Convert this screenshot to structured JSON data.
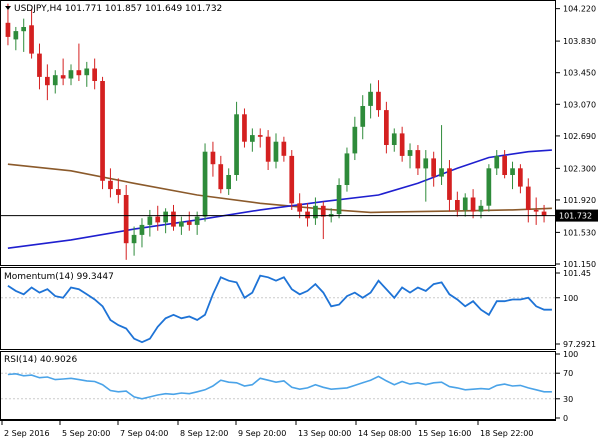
{
  "chart_data": {
    "type": "candlestick",
    "symbol_header": "USDJPY,H4  101.771 101.857 101.649 101.732",
    "last_price": "101.732",
    "colors": {
      "bull": "#2e8b3a",
      "bear": "#d42020",
      "fast_ma": "#1f1fcf",
      "slow_ma": "#8b5a2b",
      "momentum": "#1e73d6",
      "rsi": "#4aa3e8",
      "price_line": "#000000",
      "grid": "#cccccc",
      "axis": "#000000"
    },
    "price_axis": {
      "range": [
        101.15,
        104.3
      ],
      "ticks": [
        "104.220",
        "103.830",
        "103.450",
        "103.070",
        "102.690",
        "102.300",
        "101.920",
        "101.530",
        "101.150"
      ]
    },
    "x_labels": [
      "2 Sep 2016",
      "5 Sep 20:00",
      "7 Sep 04:00",
      "8 Sep 12:00",
      "9 Sep 20:00",
      "13 Sep 00:00",
      "14 Sep 08:00",
      "15 Sep 16:00",
      "18 Sep 22:00"
    ],
    "candles": [
      {
        "o": 104.05,
        "h": 104.28,
        "l": 103.78,
        "c": 103.88
      },
      {
        "o": 103.85,
        "h": 104.0,
        "l": 103.72,
        "c": 103.95
      },
      {
        "o": 103.95,
        "h": 104.1,
        "l": 103.7,
        "c": 104.0
      },
      {
        "o": 104.02,
        "h": 104.22,
        "l": 103.62,
        "c": 103.68
      },
      {
        "o": 103.68,
        "h": 103.8,
        "l": 103.25,
        "c": 103.4
      },
      {
        "o": 103.4,
        "h": 103.55,
        "l": 103.12,
        "c": 103.3
      },
      {
        "o": 103.3,
        "h": 103.48,
        "l": 103.2,
        "c": 103.42
      },
      {
        "o": 103.42,
        "h": 103.62,
        "l": 103.3,
        "c": 103.38
      },
      {
        "o": 103.38,
        "h": 103.55,
        "l": 103.3,
        "c": 103.48
      },
      {
        "o": 103.48,
        "h": 103.8,
        "l": 103.35,
        "c": 103.42
      },
      {
        "o": 103.42,
        "h": 103.58,
        "l": 103.28,
        "c": 103.5
      },
      {
        "o": 103.5,
        "h": 103.62,
        "l": 103.25,
        "c": 103.35
      },
      {
        "o": 103.35,
        "h": 103.4,
        "l": 102.05,
        "c": 102.15
      },
      {
        "o": 102.15,
        "h": 102.3,
        "l": 101.95,
        "c": 102.05
      },
      {
        "o": 102.05,
        "h": 102.18,
        "l": 101.88,
        "c": 101.98
      },
      {
        "o": 101.98,
        "h": 102.1,
        "l": 101.2,
        "c": 101.4
      },
      {
        "o": 101.4,
        "h": 101.6,
        "l": 101.25,
        "c": 101.5
      },
      {
        "o": 101.5,
        "h": 101.7,
        "l": 101.35,
        "c": 101.62
      },
      {
        "o": 101.62,
        "h": 101.8,
        "l": 101.48,
        "c": 101.72
      },
      {
        "o": 101.72,
        "h": 101.85,
        "l": 101.55,
        "c": 101.65
      },
      {
        "o": 101.65,
        "h": 101.82,
        "l": 101.52,
        "c": 101.78
      },
      {
        "o": 101.78,
        "h": 101.86,
        "l": 101.55,
        "c": 101.6
      },
      {
        "o": 101.6,
        "h": 101.72,
        "l": 101.5,
        "c": 101.66
      },
      {
        "o": 101.66,
        "h": 101.78,
        "l": 101.55,
        "c": 101.62
      },
      {
        "o": 101.62,
        "h": 101.78,
        "l": 101.5,
        "c": 101.72
      },
      {
        "o": 101.72,
        "h": 102.6,
        "l": 101.66,
        "c": 102.5
      },
      {
        "o": 102.5,
        "h": 102.62,
        "l": 102.2,
        "c": 102.35
      },
      {
        "o": 102.35,
        "h": 102.45,
        "l": 102.0,
        "c": 102.05
      },
      {
        "o": 102.05,
        "h": 102.3,
        "l": 101.98,
        "c": 102.22
      },
      {
        "o": 102.22,
        "h": 103.1,
        "l": 102.15,
        "c": 102.95
      },
      {
        "o": 102.95,
        "h": 103.02,
        "l": 102.55,
        "c": 102.62
      },
      {
        "o": 102.62,
        "h": 102.78,
        "l": 102.5,
        "c": 102.7
      },
      {
        "o": 102.7,
        "h": 102.78,
        "l": 102.55,
        "c": 102.68
      },
      {
        "o": 102.68,
        "h": 102.76,
        "l": 102.28,
        "c": 102.38
      },
      {
        "o": 102.38,
        "h": 102.72,
        "l": 102.3,
        "c": 102.62
      },
      {
        "o": 102.62,
        "h": 102.68,
        "l": 102.38,
        "c": 102.45
      },
      {
        "o": 102.45,
        "h": 102.52,
        "l": 101.8,
        "c": 101.88
      },
      {
        "o": 101.88,
        "h": 102.0,
        "l": 101.7,
        "c": 101.78
      },
      {
        "o": 101.78,
        "h": 101.88,
        "l": 101.6,
        "c": 101.7
      },
      {
        "o": 101.7,
        "h": 101.95,
        "l": 101.62,
        "c": 101.85
      },
      {
        "o": 101.85,
        "h": 101.9,
        "l": 101.45,
        "c": 101.72
      },
      {
        "o": 101.72,
        "h": 101.82,
        "l": 101.65,
        "c": 101.75
      },
      {
        "o": 101.75,
        "h": 102.18,
        "l": 101.7,
        "c": 102.1
      },
      {
        "o": 102.1,
        "h": 102.55,
        "l": 102.02,
        "c": 102.48
      },
      {
        "o": 102.48,
        "h": 102.92,
        "l": 102.4,
        "c": 102.8
      },
      {
        "o": 102.8,
        "h": 103.18,
        "l": 102.65,
        "c": 103.05
      },
      {
        "o": 103.05,
        "h": 103.32,
        "l": 102.9,
        "c": 103.22
      },
      {
        "o": 103.22,
        "h": 103.36,
        "l": 102.92,
        "c": 103.0
      },
      {
        "o": 103.0,
        "h": 103.1,
        "l": 102.48,
        "c": 102.58
      },
      {
        "o": 102.58,
        "h": 102.78,
        "l": 102.5,
        "c": 102.72
      },
      {
        "o": 102.72,
        "h": 102.8,
        "l": 102.38,
        "c": 102.45
      },
      {
        "o": 102.45,
        "h": 102.6,
        "l": 102.3,
        "c": 102.52
      },
      {
        "o": 102.52,
        "h": 102.58,
        "l": 102.22,
        "c": 102.3
      },
      {
        "o": 102.3,
        "h": 102.52,
        "l": 101.9,
        "c": 102.42
      },
      {
        "o": 102.42,
        "h": 102.5,
        "l": 102.08,
        "c": 102.2
      },
      {
        "o": 102.2,
        "h": 102.82,
        "l": 102.1,
        "c": 102.3
      },
      {
        "o": 102.3,
        "h": 102.4,
        "l": 101.78,
        "c": 101.92
      },
      {
        "o": 101.92,
        "h": 102.02,
        "l": 101.72,
        "c": 101.8
      },
      {
        "o": 101.8,
        "h": 102.0,
        "l": 101.72,
        "c": 101.95
      },
      {
        "o": 101.95,
        "h": 102.05,
        "l": 101.7,
        "c": 101.78
      },
      {
        "o": 101.78,
        "h": 101.92,
        "l": 101.7,
        "c": 101.85
      },
      {
        "o": 101.85,
        "h": 102.35,
        "l": 101.78,
        "c": 102.3
      },
      {
        "o": 102.3,
        "h": 102.52,
        "l": 102.22,
        "c": 102.45
      },
      {
        "o": 102.45,
        "h": 102.52,
        "l": 102.18,
        "c": 102.22
      },
      {
        "o": 102.22,
        "h": 102.38,
        "l": 102.05,
        "c": 102.3
      },
      {
        "o": 102.3,
        "h": 102.35,
        "l": 102.0,
        "c": 102.08
      },
      {
        "o": 102.08,
        "h": 102.18,
        "l": 101.65,
        "c": 101.8
      },
      {
        "o": 101.8,
        "h": 101.95,
        "l": 101.62,
        "c": 101.78
      },
      {
        "o": 101.78,
        "h": 101.86,
        "l": 101.65,
        "c": 101.73
      }
    ],
    "fast_ma_points": [
      [
        0,
        101.34
      ],
      [
        8,
        101.44
      ],
      [
        16,
        101.57
      ],
      [
        24,
        101.68
      ],
      [
        32,
        101.8
      ],
      [
        40,
        101.9
      ],
      [
        47,
        101.98
      ],
      [
        52,
        102.12
      ],
      [
        57,
        102.3
      ],
      [
        61,
        102.43
      ],
      [
        66,
        102.5
      ],
      [
        69,
        102.52
      ]
    ],
    "slow_ma_points": [
      [
        0,
        102.35
      ],
      [
        8,
        102.27
      ],
      [
        16,
        102.12
      ],
      [
        24,
        101.98
      ],
      [
        32,
        101.88
      ],
      [
        40,
        101.81
      ],
      [
        46,
        101.77
      ],
      [
        52,
        101.78
      ],
      [
        58,
        101.79
      ],
      [
        64,
        101.8
      ],
      [
        69,
        101.82
      ]
    ],
    "momentum": {
      "label": "Momentum(14) 99.3447",
      "ticks": [
        "101.45",
        "100",
        "97.2921"
      ],
      "range": [
        97.2921,
        101.45
      ],
      "values": [
        100.7,
        100.4,
        100.2,
        100.6,
        100.3,
        100.5,
        100.1,
        100.0,
        100.6,
        100.5,
        100.2,
        99.9,
        99.5,
        98.7,
        98.4,
        98.2,
        97.6,
        97.4,
        97.6,
        98.3,
        98.8,
        99.0,
        98.8,
        98.9,
        98.7,
        99.0,
        100.2,
        101.2,
        101.0,
        100.9,
        100.0,
        100.3,
        101.3,
        101.2,
        101.0,
        101.2,
        100.5,
        100.2,
        100.4,
        100.8,
        100.3,
        99.5,
        99.6,
        100.1,
        100.3,
        100.0,
        100.3,
        101.0,
        100.5,
        100.0,
        100.6,
        100.3,
        100.6,
        100.4,
        100.8,
        100.9,
        100.2,
        99.9,
        99.5,
        99.8,
        99.3,
        99.0,
        99.8,
        99.8,
        99.9,
        99.9,
        100.0,
        99.5,
        99.3,
        99.3
      ]
    },
    "rsi": {
      "label": "RSI(14) 40.9026",
      "ticks": [
        "100",
        "70",
        "30",
        "0"
      ],
      "values": [
        68,
        69,
        66,
        67,
        63,
        64,
        60,
        61,
        62,
        60,
        58,
        57,
        52,
        43,
        41,
        42,
        33,
        30,
        33,
        36,
        38,
        37,
        39,
        38,
        41,
        44,
        50,
        59,
        56,
        55,
        50,
        52,
        62,
        59,
        56,
        58,
        48,
        45,
        47,
        52,
        48,
        45,
        46,
        47,
        51,
        55,
        59,
        65,
        58,
        52,
        57,
        53,
        55,
        52,
        55,
        56,
        49,
        47,
        44,
        45,
        46,
        45,
        51,
        53,
        50,
        51,
        47,
        44,
        41,
        41
      ]
    }
  }
}
